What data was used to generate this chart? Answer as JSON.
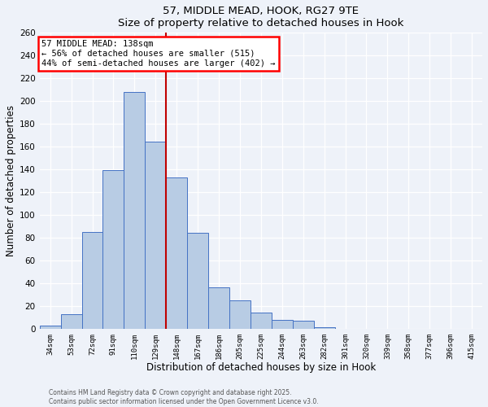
{
  "title1": "57, MIDDLE MEAD, HOOK, RG27 9TE",
  "title2": "Size of property relative to detached houses in Hook",
  "xlabel": "Distribution of detached houses by size in Hook",
  "ylabel": "Number of detached properties",
  "categories": [
    "34sqm",
    "53sqm",
    "72sqm",
    "91sqm",
    "110sqm",
    "129sqm",
    "148sqm",
    "167sqm",
    "186sqm",
    "205sqm",
    "225sqm",
    "244sqm",
    "263sqm",
    "282sqm",
    "301sqm",
    "320sqm",
    "339sqm",
    "358sqm",
    "377sqm",
    "396sqm",
    "415sqm"
  ],
  "values": [
    3,
    13,
    85,
    139,
    208,
    164,
    133,
    84,
    36,
    25,
    14,
    8,
    7,
    1,
    0,
    0,
    0,
    0,
    0,
    0,
    0
  ],
  "bar_color": "#b8cce4",
  "bar_edge_color": "#4472c4",
  "ylim": [
    0,
    260
  ],
  "yticks": [
    0,
    20,
    40,
    60,
    80,
    100,
    120,
    140,
    160,
    180,
    200,
    220,
    240,
    260
  ],
  "property_label": "57 MIDDLE MEAD: 138sqm",
  "annotation_line1": "← 56% of detached houses are smaller (515)",
  "annotation_line2": "44% of semi-detached houses are larger (402) →",
  "vline_color": "#c00000",
  "vline_position": 5.5,
  "footer1": "Contains HM Land Registry data © Crown copyright and database right 2025.",
  "footer2": "Contains public sector information licensed under the Open Government Licence v3.0.",
  "bg_color": "#eef2f9"
}
